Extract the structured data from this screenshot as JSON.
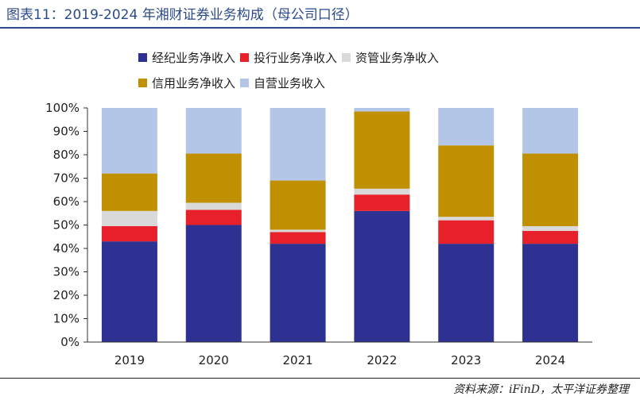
{
  "figure": {
    "title": "图表11：2019-2024 年湘财证券业务构成（母公司口径）",
    "source": "资料来源：iFinD，太平洋证券整理"
  },
  "legend": {
    "rows": [
      [
        {
          "name": "经纪业务净收入",
          "color": "#2e3192"
        },
        {
          "name": "投行业务净收入",
          "color": "#e8202a"
        },
        {
          "name": "资管业务净收入",
          "color": "#d9d9d9"
        }
      ],
      [
        {
          "name": "信用业务净收入",
          "color": "#c09000"
        },
        {
          "name": "自营业务收入",
          "color": "#b4c6e7"
        }
      ]
    ]
  },
  "chart_data": {
    "type": "bar",
    "stacked": true,
    "categories": [
      "2019",
      "2020",
      "2021",
      "2022",
      "2023",
      "2024"
    ],
    "ylim": [
      0,
      100
    ],
    "yticks": [
      "0%",
      "10%",
      "20%",
      "30%",
      "40%",
      "50%",
      "60%",
      "70%",
      "80%",
      "90%",
      "100%"
    ],
    "series": [
      {
        "name": "经纪业务净收入",
        "color": "#2e3192",
        "values": [
          43,
          50,
          42,
          56,
          42,
          42
        ]
      },
      {
        "name": "投行业务净收入",
        "color": "#e8202a",
        "values": [
          6.5,
          6.5,
          5,
          7,
          10,
          5.5
        ]
      },
      {
        "name": "资管业务净收入",
        "color": "#d9d9d9",
        "values": [
          6.5,
          3,
          1,
          2.5,
          1.5,
          2
        ]
      },
      {
        "name": "信用业务净收入",
        "color": "#c09000",
        "values": [
          16,
          21,
          21,
          33,
          30.5,
          31
        ]
      },
      {
        "name": "自营业务收入",
        "color": "#b4c6e7",
        "values": [
          28,
          19.5,
          31,
          1.5,
          16,
          19.5
        ]
      }
    ]
  }
}
